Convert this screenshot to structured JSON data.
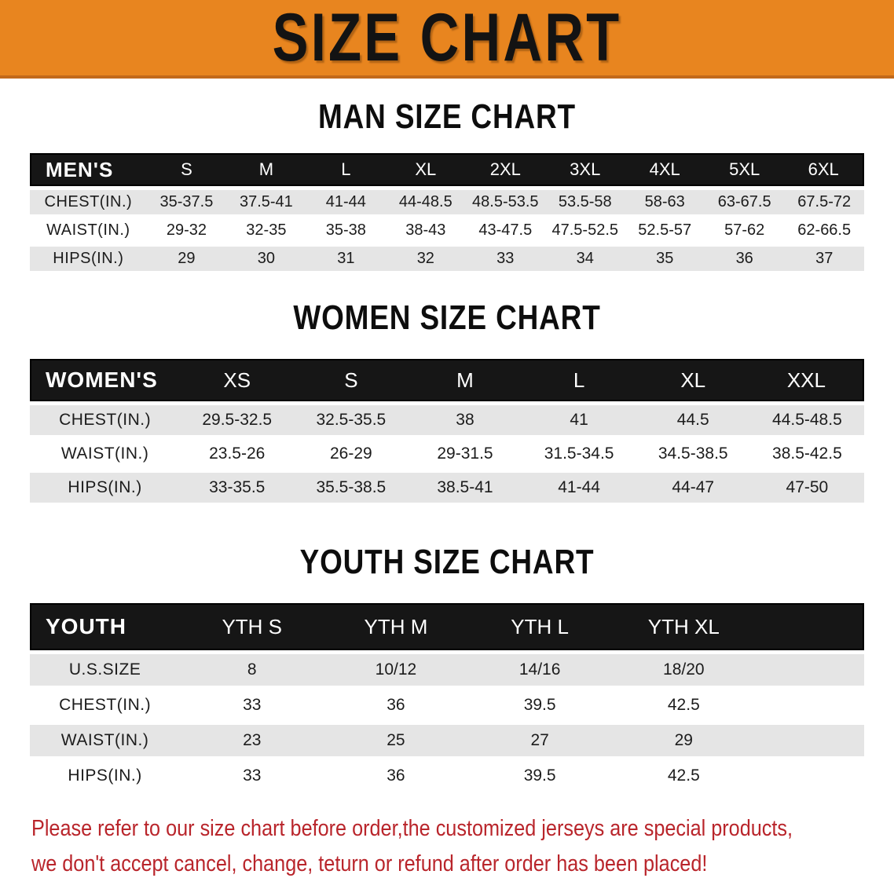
{
  "banner": {
    "title": "SIZE CHART"
  },
  "colors": {
    "banner_bg": "#E8851F",
    "banner_edge": "#C2691A",
    "table_header_bg": "#161616",
    "row_stripe": "#E5E5E5",
    "disclaimer_red": "#B9252B"
  },
  "sections": [
    {
      "heading": "MAN SIZE CHART",
      "table": {
        "header_label": "MEN'S",
        "columns": [
          "S",
          "M",
          "L",
          "XL",
          "2XL",
          "3XL",
          "4XL",
          "5XL",
          "6XL"
        ],
        "label_col_width": "14%",
        "trailing_blank_width": null,
        "rows": [
          {
            "label": "CHEST(IN.)",
            "values": [
              "35-37.5",
              "37.5-41",
              "41-44",
              "44-48.5",
              "48.5-53.5",
              "53.5-58",
              "58-63",
              "63-67.5",
              "67.5-72"
            ]
          },
          {
            "label": "WAIST(IN.)",
            "values": [
              "29-32",
              "32-35",
              "35-38",
              "38-43",
              "43-47.5",
              "47.5-52.5",
              "52.5-57",
              "57-62",
              "62-66.5"
            ]
          },
          {
            "label": "HIPS(IN.)",
            "values": [
              "29",
              "30",
              "31",
              "32",
              "33",
              "34",
              "35",
              "36",
              "37"
            ]
          }
        ]
      }
    },
    {
      "heading": "WOMEN SIZE CHART",
      "table": {
        "header_label": "WOMEN'S",
        "columns": [
          "XS",
          "S",
          "M",
          "L",
          "XL",
          "XXL"
        ],
        "label_col_width": "18%",
        "trailing_blank_width": null,
        "rows": [
          {
            "label": "CHEST(IN.)",
            "values": [
              "29.5-32.5",
              "32.5-35.5",
              "38",
              "41",
              "44.5",
              "44.5-48.5"
            ]
          },
          {
            "label": "WAIST(IN.)",
            "values": [
              "23.5-26",
              "26-29",
              "29-31.5",
              "31.5-34.5",
              "34.5-38.5",
              "38.5-42.5"
            ]
          },
          {
            "label": "HIPS(IN.)",
            "values": [
              "33-35.5",
              "35.5-38.5",
              "38.5-41",
              "41-44",
              "44-47",
              "47-50"
            ]
          }
        ]
      }
    },
    {
      "heading": "YOUTH SIZE CHART",
      "table": {
        "header_label": "YOUTH",
        "columns": [
          "YTH S",
          "YTH M",
          "YTH L",
          "YTH XL"
        ],
        "label_col_width": "18%",
        "trailing_blank_width": "13%",
        "rows": [
          {
            "label": "U.S.SIZE",
            "values": [
              "8",
              "10/12",
              "14/16",
              "18/20"
            ]
          },
          {
            "label": "CHEST(IN.)",
            "values": [
              "33",
              "36",
              "39.5",
              "42.5"
            ]
          },
          {
            "label": "WAIST(IN.)",
            "values": [
              "23",
              "25",
              "27",
              "29"
            ]
          },
          {
            "label": "HIPS(IN.)",
            "values": [
              "33",
              "36",
              "39.5",
              "42.5"
            ]
          }
        ]
      }
    }
  ],
  "disclaimer": {
    "line1": "Please refer to our size chart before order,the customized jerseys are special products,",
    "line2": "we don't accept cancel, change, teturn or refund after order has been placed!"
  }
}
